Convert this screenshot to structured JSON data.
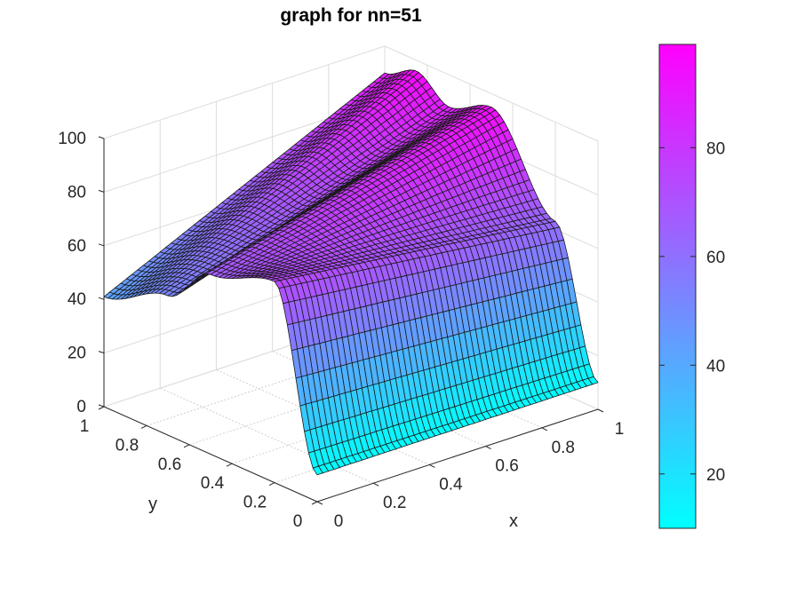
{
  "chart_data": {
    "type": "surface3d",
    "title": "graph for nn=51",
    "xlabel": "x",
    "ylabel": "y",
    "zlabel": "",
    "xlim": [
      0,
      1
    ],
    "ylim": [
      0,
      1
    ],
    "zlim": [
      0,
      100
    ],
    "x_ticks": [
      "0",
      "0.2",
      "0.4",
      "0.6",
      "0.8",
      "1"
    ],
    "y_ticks": [
      "0",
      "0.2",
      "0.4",
      "0.6",
      "0.8",
      "1"
    ],
    "z_ticks": [
      "0",
      "20",
      "40",
      "60",
      "80",
      "100"
    ],
    "grid_points": 51,
    "colormap": "cool",
    "colormap_stops": [
      "#00ffff",
      "#ff00ff"
    ],
    "colorbar": {
      "range": [
        10,
        99
      ],
      "ticks": [
        "20",
        "40",
        "60",
        "80"
      ],
      "tick_values": [
        20,
        40,
        60,
        80
      ]
    },
    "boundary_profiles": {
      "y0_edge_z_at_x": [
        [
          0,
          10
        ],
        [
          1,
          10
        ]
      ],
      "x0_edge_z_at_y": [
        [
          0,
          10
        ],
        [
          0.2,
          75
        ],
        [
          0.5,
          67
        ],
        [
          0.7,
          52
        ],
        [
          1,
          41
        ]
      ],
      "x1_edge_z_at_y": [
        [
          0,
          10
        ],
        [
          0.2,
          63
        ],
        [
          0.5,
          95
        ],
        [
          0.7,
          88
        ],
        [
          0.85,
          96
        ],
        [
          1,
          90
        ]
      ]
    },
    "grid": true
  }
}
